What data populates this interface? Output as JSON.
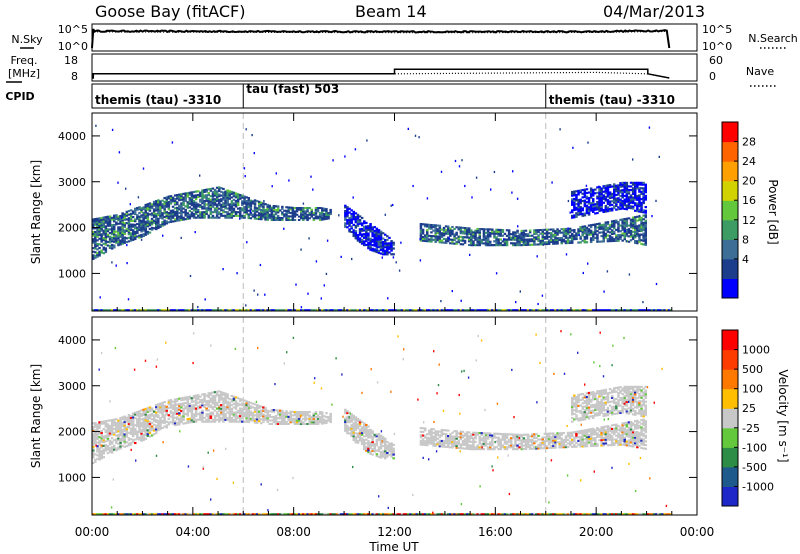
{
  "header": {
    "station": "Goose Bay (fitACF)",
    "beam": "Beam 14",
    "date": "04/Mar/2013"
  },
  "noise_panel": {
    "left_label": "N.Sky",
    "right_label": "N.Search",
    "left_ticks": [
      "10^5",
      "10^0"
    ],
    "right_ticks": [
      "10^5",
      "10^0"
    ]
  },
  "freq_panel": {
    "left_label_1": "Freq.",
    "left_label_2": "[MHz]",
    "right_label": "Nave",
    "left_ticks": [
      "18",
      "8"
    ],
    "right_ticks": [
      "60",
      "0"
    ]
  },
  "cpid_panel": {
    "label": "CPID",
    "segments": [
      {
        "start_hour": 0,
        "text": "themis (tau) -3310"
      },
      {
        "start_hour": 6,
        "text": "tau (fast) 503"
      },
      {
        "start_hour": 18,
        "text": "themis (tau) -3310"
      }
    ]
  },
  "time_axis": {
    "title": "Time UT",
    "ticks": [
      "00:00",
      "04:00",
      "08:00",
      "12:00",
      "16:00",
      "20:00",
      "00:00"
    ],
    "range_hours": [
      0,
      24
    ],
    "data_end_hour": 22.9
  },
  "power_colorbar": {
    "label": "Power [dB]",
    "ticks": [
      "28",
      "24",
      "20",
      "16",
      "12",
      "8",
      "4"
    ],
    "colors": [
      "#0000ff",
      "#1c3c8c",
      "#3c6e96",
      "#3c9c64",
      "#64c83c",
      "#d2d200",
      "#ffa000",
      "#ff6400",
      "#ff0000"
    ]
  },
  "velocity_colorbar": {
    "label": "Velocity [m s⁻¹]",
    "ticks": [
      "1000",
      "500",
      "100",
      "25",
      "-25",
      "-100",
      "-500",
      "-1000"
    ],
    "colors": [
      "#1e28c8",
      "#1e5a8c",
      "#2d8c46",
      "#64c83c",
      "#c8c8c8",
      "#ffbe00",
      "#ff7800",
      "#ff3c00",
      "#ff0000"
    ]
  },
  "chart_data": [
    {
      "type": "line",
      "title": "",
      "ylabel": "N.Sky",
      "series": [
        {
          "name": "N.Sky",
          "x": [
            0,
            0.05,
            0.1,
            4,
            8,
            12,
            16,
            20,
            22.8,
            22.9
          ],
          "y": [
            1,
            100000,
            30000,
            25000,
            22000,
            20000,
            20000,
            22000,
            40000,
            1
          ]
        },
        {
          "name": "N.Search",
          "x": [
            0,
            0.05,
            0.1,
            4,
            8,
            12,
            16,
            20,
            22.8,
            22.9
          ],
          "y": [
            1,
            100000,
            30000,
            25000,
            22000,
            20000,
            20000,
            22000,
            40000,
            1
          ]
        }
      ],
      "ylim": [
        1,
        100000
      ]
    },
    {
      "type": "line",
      "title": "",
      "ylabel": "Freq. [MHz]",
      "series": [
        {
          "name": "Freq.",
          "x": [
            0,
            0.05,
            11.9,
            12,
            22,
            22.05,
            22.9
          ],
          "y": [
            8,
            10,
            10,
            12.2,
            12.2,
            10,
            8
          ]
        },
        {
          "name": "Nave",
          "x": [
            0,
            0.05,
            12,
            20,
            22,
            22.9
          ],
          "y": [
            0,
            12,
            12,
            16,
            12,
            0
          ]
        }
      ],
      "ylim": [
        8,
        18
      ],
      "y2lim": [
        0,
        60
      ]
    },
    {
      "type": "heatmap",
      "title": "",
      "ylabel": "Slant Range [km]",
      "xlabel": "",
      "xlim": [
        0,
        24
      ],
      "ylim": [
        180,
        4500
      ],
      "yticks": [
        1000,
        2000,
        3000,
        4000
      ],
      "color_label": "Power [dB]",
      "features": [
        {
          "name": "main-band",
          "x": [
            0,
            1,
            2,
            3,
            4,
            5,
            6,
            7,
            8,
            9,
            9.5
          ],
          "y_low": [
            1300,
            1600,
            1800,
            2100,
            2200,
            2200,
            2200,
            2150,
            2150,
            2150,
            2200
          ],
          "y_high": [
            2200,
            2300,
            2500,
            2700,
            2800,
            2900,
            2700,
            2500,
            2450,
            2450,
            2400
          ],
          "value": 10
        },
        {
          "name": "echo-1030",
          "x": [
            10,
            10.5,
            11,
            11.5,
            12
          ],
          "y_low": [
            2000,
            1700,
            1500,
            1400,
            1400
          ],
          "y_high": [
            2500,
            2300,
            2100,
            1900,
            1700
          ],
          "value": 8
        },
        {
          "name": "afternoon-band",
          "x": [
            13,
            15,
            17,
            19,
            21,
            22
          ],
          "y_low": [
            1700,
            1600,
            1600,
            1650,
            1700,
            1600
          ],
          "y_high": [
            2100,
            2000,
            1950,
            2000,
            2200,
            2300
          ],
          "value": 12
        },
        {
          "name": "upper-echo",
          "x": [
            19,
            20,
            21,
            22
          ],
          "y_low": [
            2200,
            2300,
            2400,
            2300
          ],
          "y_high": [
            2800,
            2900,
            3000,
            3000
          ],
          "value": 6
        },
        {
          "name": "ground-line",
          "x": [
            0,
            23
          ],
          "y_low": [
            180,
            180
          ],
          "y_high": [
            220,
            220
          ],
          "value": 6
        }
      ]
    },
    {
      "type": "heatmap",
      "title": "",
      "ylabel": "Slant Range [km]",
      "xlabel": "Time UT",
      "xlim": [
        0,
        24
      ],
      "ylim": [
        180,
        4500
      ],
      "yticks": [
        1000,
        2000,
        3000,
        4000
      ],
      "color_label": "Velocity [m s⁻¹]",
      "features": [
        {
          "name": "main-band",
          "x": [
            0,
            1,
            2,
            3,
            4,
            5,
            6,
            7,
            8,
            9,
            9.5
          ],
          "y_low": [
            1300,
            1600,
            1800,
            2100,
            2200,
            2200,
            2200,
            2150,
            2150,
            2150,
            2200
          ],
          "y_high": [
            2200,
            2300,
            2500,
            2700,
            2800,
            2900,
            2700,
            2500,
            2450,
            2450,
            2400
          ],
          "value": 0
        },
        {
          "name": "echo-1030",
          "x": [
            10,
            10.5,
            11,
            11.5,
            12
          ],
          "y_low": [
            2000,
            1700,
            1500,
            1400,
            1400
          ],
          "y_high": [
            2500,
            2300,
            2100,
            1900,
            1700
          ],
          "value": 0
        },
        {
          "name": "afternoon-band",
          "x": [
            13,
            15,
            17,
            19,
            21,
            22
          ],
          "y_low": [
            1700,
            1600,
            1600,
            1650,
            1700,
            1600
          ],
          "y_high": [
            2100,
            2000,
            1950,
            2000,
            2200,
            2300
          ],
          "value": 0
        },
        {
          "name": "upper-echo",
          "x": [
            19,
            20,
            21,
            22
          ],
          "y_low": [
            2200,
            2300,
            2400,
            2300
          ],
          "y_high": [
            2800,
            2900,
            3000,
            3000
          ],
          "value": 0
        },
        {
          "name": "ground-line",
          "x": [
            0,
            23
          ],
          "y_low": [
            180,
            180
          ],
          "y_high": [
            220,
            220
          ],
          "value": 50
        }
      ]
    }
  ]
}
